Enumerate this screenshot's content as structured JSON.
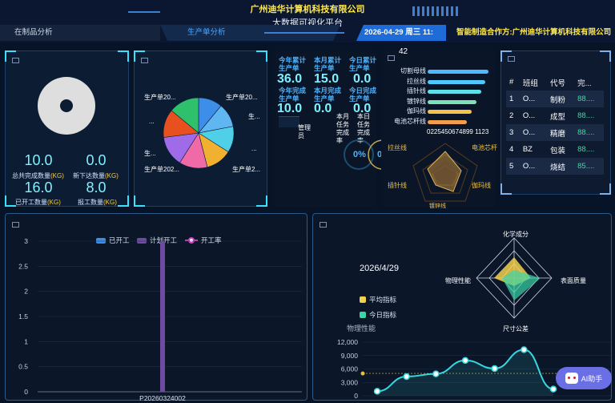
{
  "header": {
    "company": "广州迪华计算机科技有限公司",
    "platform": "大数据可视化平台",
    "nav_left": "在制品分析",
    "nav_mid": "生产单分析",
    "datetime": "2026-04-29 周三 11: 23:",
    "partner": "智能制造合作方:广州迪华计算机科技有限公司"
  },
  "summary": {
    "total_done": "10.0",
    "total_done_label": "总共完成数量",
    "new_issued": "0.0",
    "new_issued_label": "新下达数量",
    "started": "16.0",
    "started_label": "已开工数量",
    "reported": "8.0",
    "reported_label": "报工数量",
    "unit": "(KG)"
  },
  "pie": {
    "labels": [
      "生产单20...",
      "生产单20...",
      "生...",
      "...",
      "生产单2...",
      "生产单202...",
      "生...",
      "..."
    ]
  },
  "kpi": {
    "year_plan_label": "今年累计生产单",
    "year_plan": "36.0",
    "month_plan_label": "本月累计生产单",
    "month_plan": "15.0",
    "day_plan_label": "今日累计生产单",
    "day_plan": "0.0",
    "year_done_label": "今年完成生产单",
    "year_done": "10.0",
    "month_done_label": "本月完成生产单",
    "month_done": "0.0",
    "day_done_label": "今日完成生产单",
    "day_done": "0.0",
    "manager_label": "管理员",
    "month_rate_label": "本月任务完成率",
    "day_rate_label": "本日任务完成率",
    "month_rate": "0%",
    "day_rate": "0%"
  },
  "lines": {
    "count": "42",
    "items": [
      {
        "name": "切割母线",
        "color": "#4fb8ff",
        "frac": 1.0
      },
      {
        "name": "拉丝线",
        "color": "#4ec9ff",
        "frac": 0.95
      },
      {
        "name": "插针线",
        "color": "#5fe0e8",
        "frac": 0.88
      },
      {
        "name": "镀锌线",
        "color": "#7ee0b8",
        "frac": 0.8
      },
      {
        "name": "伽玛线",
        "color": "#f2c14e",
        "frac": 0.72
      },
      {
        "name": "电池芯杆线",
        "color": "#f29c4e",
        "frac": 0.64
      }
    ],
    "axis": "0225450674899 1123",
    "radar_labels": [
      "拉丝线",
      "电池芯杆",
      "伽玛线",
      "插针线",
      "镀锌线"
    ]
  },
  "team_table": {
    "headers": [
      "#",
      "班组",
      "代号",
      "完..."
    ],
    "rows": [
      [
        "1",
        "O...",
        "制粉",
        "88...."
      ],
      [
        "2",
        "O...",
        "成型",
        "88...."
      ],
      [
        "3",
        "O...",
        "精磨",
        "88...."
      ],
      [
        "4",
        "BZ",
        "包装",
        "88...."
      ],
      [
        "5",
        "O...",
        "烧结",
        "85...."
      ]
    ]
  },
  "start_chart": {
    "legend": [
      "已开工",
      "计划开工",
      "开工率"
    ],
    "yticks": [
      "3",
      "2.5",
      "2",
      "1.5",
      "1",
      "0.5",
      "0"
    ],
    "xlabel": "P20260324002"
  },
  "quality": {
    "date": "2026/4/29",
    "avg_label": "平均指标",
    "today_label": "今日指标",
    "radar_labels": [
      "化学成分",
      "物理性能",
      "表面质量",
      "尺寸公差"
    ],
    "section_label": "物理性能",
    "yticks": [
      "12,000",
      "9,000",
      "6,000",
      "3,000",
      "0"
    ]
  },
  "ai_button": "AI助手",
  "chart_data": [
    {
      "type": "pie",
      "labels": [
        "生产单20...",
        "生产单20...",
        "生...",
        "...",
        "生产单2...",
        "生产单202...",
        "生...",
        "..."
      ],
      "values": [
        11,
        11,
        12,
        12,
        13,
        14,
        13,
        14
      ],
      "colors": [
        "#3d8ee8",
        "#5fb6f0",
        "#4fcfe8",
        "#f0b030",
        "#f06aa8",
        "#a06be8",
        "#e85020",
        "#2ec06a"
      ]
    },
    {
      "type": "bar",
      "categories": [
        "P20260324002"
      ],
      "series": [
        {
          "name": "已开工",
          "values": [
            0
          ]
        },
        {
          "name": "计划开工",
          "values": [
            3
          ]
        }
      ],
      "ylim": [
        0,
        3
      ]
    },
    {
      "type": "line",
      "values": [
        1000,
        4300,
        4900,
        7900,
        6100,
        10300,
        1500
      ],
      "ylim": [
        0,
        12000
      ],
      "reference": 5000
    }
  ]
}
